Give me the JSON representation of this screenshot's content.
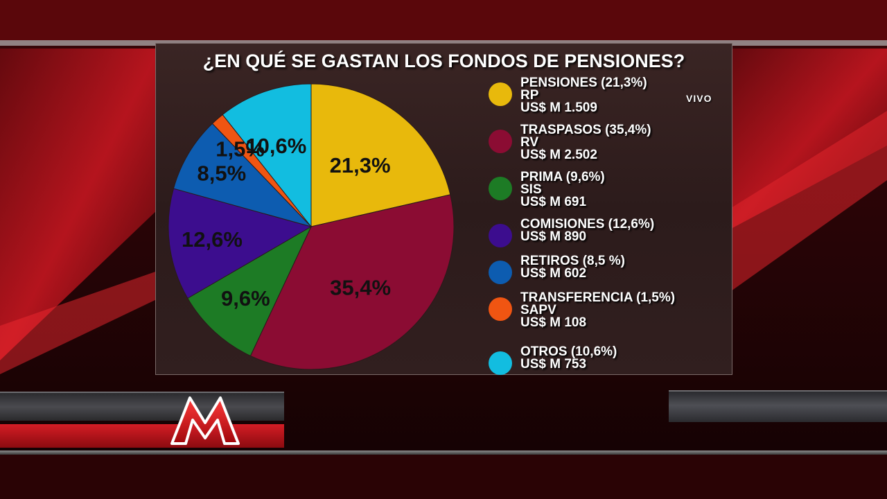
{
  "chart_data": {
    "type": "pie",
    "title": "¿EN QUÉ SE GASTAN LOS FONDOS DE PENSIONES?",
    "slices": [
      {
        "label": "21,3%",
        "value": 21.3,
        "color": "#e8b90c"
      },
      {
        "label": "35,4%",
        "value": 35.4,
        "color": "#8b0c33"
      },
      {
        "label": "9,6%",
        "value": 9.6,
        "color": "#1d7b25"
      },
      {
        "label": "12,6%",
        "value": 12.6,
        "color": "#3c0d8e"
      },
      {
        "label": "8,5%",
        "value": 8.5,
        "color": "#0d5cb0"
      },
      {
        "label": "1,5%",
        "value": 1.5,
        "color": "#f05512"
      },
      {
        "label": "10,6%",
        "value": 10.6,
        "color": "#12bde0"
      }
    ],
    "legend": [
      {
        "lines": [
          "PENSIONES  (21,3%)",
          "RP",
          "US$ M 1.509"
        ],
        "color": "#e8b90c"
      },
      {
        "lines": [
          "TRASPASOS (35,4%)",
          "RV",
          "US$ M 2.502"
        ],
        "color": "#8b0c33"
      },
      {
        "lines": [
          "PRIMA  (9,6%)",
          "SIS",
          "US$ M 691"
        ],
        "color": "#1d7b25"
      },
      {
        "lines": [
          "COMISIONES (12,6%)",
          "US$ M 890"
        ],
        "color": "#3c0d8e"
      },
      {
        "lines": [
          "RETIROS (8,5 %)",
          "US$ M 602"
        ],
        "color": "#0d5cb0"
      },
      {
        "lines": [
          "TRANSFERENCIA (1,5%)",
          "SAPV",
          "US$ M 108"
        ],
        "color": "#f05512"
      },
      {
        "lines": [
          "OTROS (10,6%)",
          "US$ M 753"
        ],
        "color": "#12bde0"
      }
    ]
  },
  "overlay": {
    "live_text": "VIVO"
  },
  "colors": {
    "background": "#1a0406",
    "accent_red": "#d41d25"
  }
}
